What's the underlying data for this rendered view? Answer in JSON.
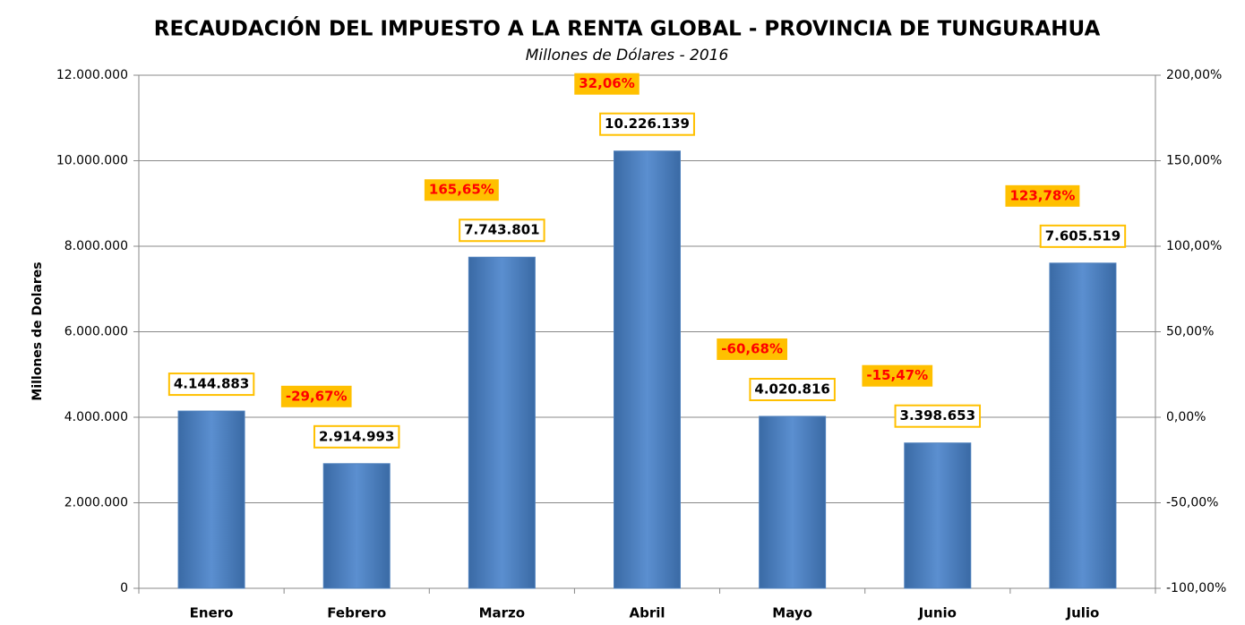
{
  "chart_data": {
    "type": "bar",
    "title": "RECAUDACIÓN DEL IMPUESTO A LA RENTA GLOBAL -  PROVINCIA DE TUNGURAHUA",
    "subtitle": "Millones de Dólares - 2016",
    "y_label": "Millones de Dolares",
    "categories": [
      "Enero",
      "Febrero",
      "Marzo",
      "Abril",
      "Mayo",
      "Junio",
      "Julio"
    ],
    "series": [
      {
        "color": "#4f81bd",
        "values": [
          4144883,
          2914993,
          7743801,
          10226139,
          4020816,
          3398653,
          7605519
        ],
        "value_labels": [
          "4.144.883",
          "2.914.993",
          "7.743.801",
          "10.226.139",
          "4.020.816",
          "3.398.653",
          "7.605.519"
        ],
        "label_border": "#ffc000"
      },
      {
        "axis": "y2",
        "color": "#ff0000",
        "label_background": "#ffc000",
        "values": [
          null,
          -29.67,
          165.65,
          32.06,
          -60.68,
          -15.47,
          123.78
        ],
        "value_labels": [
          null,
          "-29,67%",
          "165,65%",
          "32,06%",
          "-60,68%",
          "-15,47%",
          "123,78%"
        ]
      }
    ],
    "ylim": [
      0,
      12000000
    ],
    "yticks": [
      0,
      {
        "value": 2000000,
        "label": "2.000.000"
      },
      {
        "value": 4000000,
        "label": "4.000.000"
      },
      {
        "value": 6000000,
        "label": "6.000.000"
      },
      {
        "value": 8000000,
        "label": "8.000.000"
      },
      {
        "value": 10000000,
        "label": "10.000.000"
      },
      {
        "value": 12000000,
        "label": "12.000.000"
      }
    ],
    "y2lim": [
      -100,
      200
    ],
    "y2ticks": [
      {
        "value": -100,
        "label": "-100,00%"
      },
      {
        "value": -50,
        "label": "-50,00%"
      },
      {
        "value": 0,
        "label": "0,00%"
      },
      {
        "value": 50,
        "label": "50,00%"
      },
      {
        "value": 100,
        "label": "100,00%"
      },
      {
        "value": 150,
        "label": "150,00%"
      },
      {
        "value": 200,
        "label": "200,00%"
      }
    ],
    "grid": true
  }
}
